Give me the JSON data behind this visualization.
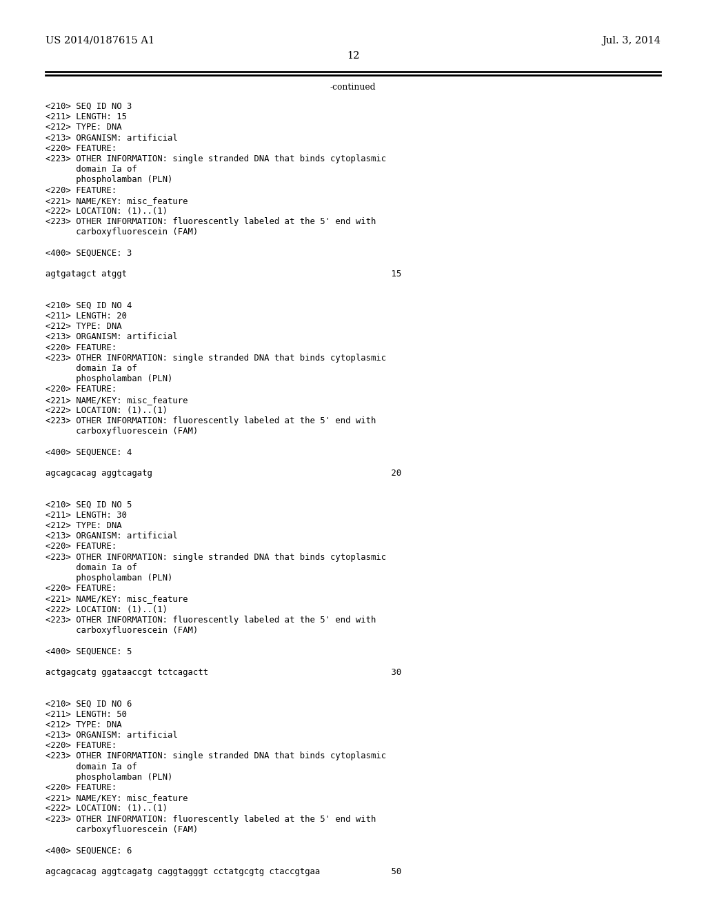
{
  "background_color": "#ffffff",
  "header_left": "US 2014/0187615 A1",
  "header_right": "Jul. 3, 2014",
  "page_number": "12",
  "continued_text": "-continued",
  "font_size_header": 10.5,
  "font_size_body": 8.8,
  "font_size_page": 10.5,
  "content_lines": [
    "<210> SEQ ID NO 3",
    "<211> LENGTH: 15",
    "<212> TYPE: DNA",
    "<213> ORGANISM: artificial",
    "<220> FEATURE:",
    "<223> OTHER INFORMATION: single stranded DNA that binds cytoplasmic",
    "      domain Ia of",
    "      phospholamban (PLN)",
    "<220> FEATURE:",
    "<221> NAME/KEY: misc_feature",
    "<222> LOCATION: (1)..(1)",
    "<223> OTHER INFORMATION: fluorescently labeled at the 5' end with",
    "      carboxyfluorescein (FAM)",
    "",
    "<400> SEQUENCE: 3",
    "",
    "agtgatagct atggt                                                    15",
    "",
    "",
    "<210> SEQ ID NO 4",
    "<211> LENGTH: 20",
    "<212> TYPE: DNA",
    "<213> ORGANISM: artificial",
    "<220> FEATURE:",
    "<223> OTHER INFORMATION: single stranded DNA that binds cytoplasmic",
    "      domain Ia of",
    "      phospholamban (PLN)",
    "<220> FEATURE:",
    "<221> NAME/KEY: misc_feature",
    "<222> LOCATION: (1)..(1)",
    "<223> OTHER INFORMATION: fluorescently labeled at the 5' end with",
    "      carboxyfluorescein (FAM)",
    "",
    "<400> SEQUENCE: 4",
    "",
    "agcagcacag aggtcagatg                                               20",
    "",
    "",
    "<210> SEQ ID NO 5",
    "<211> LENGTH: 30",
    "<212> TYPE: DNA",
    "<213> ORGANISM: artificial",
    "<220> FEATURE:",
    "<223> OTHER INFORMATION: single stranded DNA that binds cytoplasmic",
    "      domain Ia of",
    "      phospholamban (PLN)",
    "<220> FEATURE:",
    "<221> NAME/KEY: misc_feature",
    "<222> LOCATION: (1)..(1)",
    "<223> OTHER INFORMATION: fluorescently labeled at the 5' end with",
    "      carboxyfluorescein (FAM)",
    "",
    "<400> SEQUENCE: 5",
    "",
    "actgagcatg ggataaccgt tctcagactt                                    30",
    "",
    "",
    "<210> SEQ ID NO 6",
    "<211> LENGTH: 50",
    "<212> TYPE: DNA",
    "<213> ORGANISM: artificial",
    "<220> FEATURE:",
    "<223> OTHER INFORMATION: single stranded DNA that binds cytoplasmic",
    "      domain Ia of",
    "      phospholamban (PLN)",
    "<220> FEATURE:",
    "<221> NAME/KEY: misc_feature",
    "<222> LOCATION: (1)..(1)",
    "<223> OTHER INFORMATION: fluorescently labeled at the 5' end with",
    "      carboxyfluorescein (FAM)",
    "",
    "<400> SEQUENCE: 6",
    "",
    "agcagcacag aggtcagatg caggtagggt cctatgcgtg ctaccgtgaa              50"
  ]
}
